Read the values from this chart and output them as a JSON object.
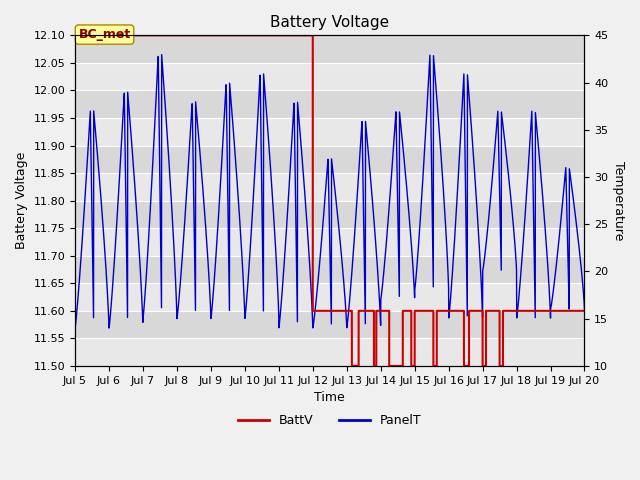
{
  "title": "Battery Voltage",
  "xlabel": "Time",
  "ylabel_left": "Battery Voltage",
  "ylabel_right": "Temperature",
  "xlim": [
    5,
    20
  ],
  "ylim_left": [
    11.5,
    12.1
  ],
  "ylim_right": [
    10,
    45
  ],
  "xtick_labels": [
    "Jul 5",
    "Jul 6",
    "Jul 7",
    "Jul 8",
    "Jul 9",
    "Jul 10",
    "Jul 11",
    "Jul 12",
    "Jul 13",
    "Jul 14",
    "Jul 15",
    "Jul 16",
    "Jul 17",
    "Jul 18",
    "Jul 19",
    "Jul 20"
  ],
  "xtick_positions": [
    5,
    6,
    7,
    8,
    9,
    10,
    11,
    12,
    13,
    14,
    15,
    16,
    17,
    18,
    19,
    20
  ],
  "ytick_left": [
    11.5,
    11.55,
    11.6,
    11.65,
    11.7,
    11.75,
    11.8,
    11.85,
    11.9,
    11.95,
    12.0,
    12.05,
    12.1
  ],
  "ytick_right": [
    10,
    15,
    20,
    25,
    30,
    35,
    40,
    45
  ],
  "annotation_box_color": "#ffff99",
  "annotation_text": "BC_met",
  "annotation_text_color": "#8b0000",
  "batt_color": "#cc0000",
  "panel_color": "#0000cc",
  "legend_batt": "BattV",
  "legend_panel": "PanelT",
  "figsize": [
    6.4,
    4.8
  ],
  "dpi": 100
}
